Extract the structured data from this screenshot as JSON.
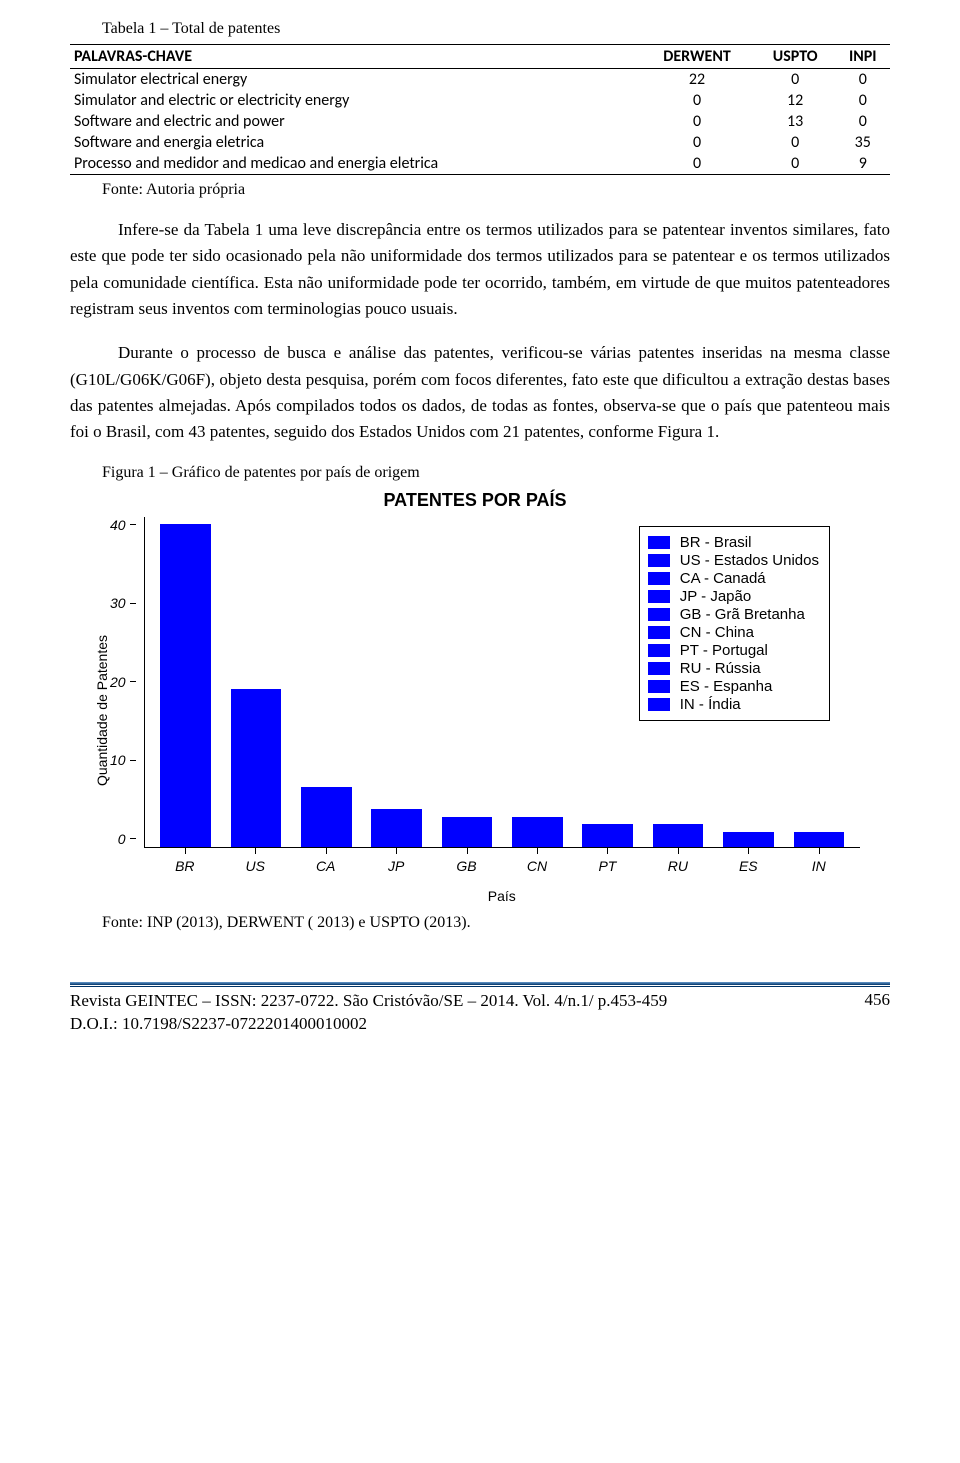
{
  "table": {
    "caption": "Tabela 1 – Total de patentes",
    "source": "Fonte: Autoria própria",
    "columns": [
      "PALAVRAS-CHAVE",
      "DERWENT",
      "USPTO",
      "INPI"
    ],
    "rows": [
      [
        "Simulator electrical energy",
        "22",
        "0",
        "0"
      ],
      [
        "Simulator and electric or electricity energy",
        "0",
        "12",
        "0"
      ],
      [
        "Software and electric and power",
        "0",
        "13",
        "0"
      ],
      [
        "Software and energia eletrica",
        "0",
        "0",
        "35"
      ],
      [
        "Processo and medidor and medicao and energia eletrica",
        "0",
        "0",
        "9"
      ]
    ]
  },
  "paragraphs": {
    "p1": "Infere-se da Tabela 1 uma leve discrepância entre os termos utilizados para se patentear inventos similares, fato este que pode ter sido ocasionado pela não uniformidade dos termos utilizados para se patentear e os termos utilizados pela comunidade científica. Esta não uniformidade pode ter ocorrido, também, em virtude de que muitos patenteadores registram seus inventos com terminologias pouco usuais.",
    "p2": "Durante o processo de busca e análise das patentes, verificou-se várias patentes inseridas na mesma classe (G10L/G06K/G06F), objeto desta pesquisa, porém com focos diferentes, fato este que dificultou a extração destas bases das patentes almejadas. Após compilados todos os dados, de todas as fontes, observa-se que o país que patenteou mais foi o Brasil, com 43 patentes, seguido dos Estados Unidos com 21 patentes, conforme Figura 1."
  },
  "figure": {
    "caption": "Figura 1 – Gráfico de patentes por país de origem",
    "title": "PATENTES POR PAÍS",
    "ylabel": "Quantidade de Patentes",
    "xlabel": "País",
    "source": "Fonte: INP (2013), DERWENT ( 2013) e  USPTO (2013).",
    "type": "bar",
    "ylim": [
      0,
      44
    ],
    "yticks": [
      "40",
      "30",
      "20",
      "10",
      "0"
    ],
    "bar_color": "#0000ff",
    "background_color": "#ffffff",
    "categories": [
      "BR",
      "US",
      "CA",
      "JP",
      "GB",
      "CN",
      "PT",
      "RU",
      "ES",
      "IN"
    ],
    "values": [
      43,
      21,
      8,
      5,
      4,
      4,
      3,
      3,
      2,
      2
    ],
    "legend": [
      "BR - Brasil",
      "US - Estados Unidos",
      "CA - Canadá",
      "JP - Japão",
      "GB - Grã Bretanha",
      "CN - China",
      "PT - Portugal",
      "RU - Rússia",
      "ES - Espanha",
      "IN - Índia"
    ],
    "title_fontsize": 18,
    "axis_fontsize": 14,
    "legend_fontsize": 15
  },
  "footer": {
    "line1": "Revista GEINTEC – ISSN: 2237-0722. São Cristóvão/SE – 2014. Vol. 4/n.1/ p.453-459",
    "line2": "D.O.I.: 10.7198/S2237-0722201400010002",
    "page": "456"
  }
}
